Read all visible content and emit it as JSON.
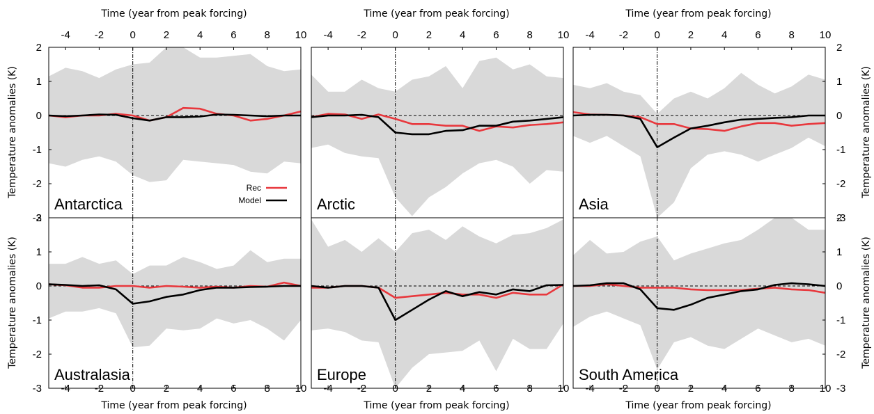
{
  "figure": {
    "xlabel": "Time (year from peak forcing)",
    "ylabel": "Temperature anomalies (K)",
    "x_ticks": [
      -4,
      -2,
      0,
      2,
      4,
      6,
      8,
      10
    ],
    "y_ticks": [
      -3,
      -2,
      -1,
      0,
      1,
      2
    ],
    "xlim": [
      -5,
      10
    ],
    "ylim": [
      -3,
      2
    ],
    "colors": {
      "rec": "#e8383d",
      "model": "#000000",
      "spread": "#d9d9d9"
    }
  },
  "legend": {
    "rec": "Rec",
    "model": "Model",
    "placement": "inside-bottom-right of first panel"
  },
  "chart_data": [
    {
      "type": "line",
      "region": "Antarctica",
      "x": [
        -5,
        -4,
        -3,
        -2,
        -1,
        0,
        1,
        2,
        3,
        4,
        5,
        6,
        7,
        8,
        9,
        10
      ],
      "series": [
        {
          "name": "Rec",
          "values": [
            0,
            -0.05,
            0,
            0,
            0.05,
            0,
            -0.15,
            -0.05,
            0.22,
            0.2,
            0.05,
            0,
            -0.15,
            -0.1,
            0,
            0.12
          ]
        },
        {
          "name": "Model",
          "values": [
            0,
            -0.02,
            0,
            0.03,
            0.02,
            -0.08,
            -0.15,
            -0.05,
            -0.05,
            -0.03,
            0.03,
            0.02,
            0,
            -0.02,
            0,
            0
          ]
        }
      ],
      "spread_upper": [
        1.15,
        1.4,
        1.3,
        1.1,
        1.35,
        1.5,
        1.55,
        2.0,
        2.0,
        1.7,
        1.7,
        1.75,
        1.8,
        1.45,
        1.3,
        1.35
      ],
      "spread_lower": [
        -1.4,
        -1.5,
        -1.3,
        -1.2,
        -1.35,
        -1.75,
        -1.95,
        -1.9,
        -1.3,
        -1.35,
        -1.4,
        -1.45,
        -1.65,
        -1.7,
        -1.35,
        -1.4
      ]
    },
    {
      "type": "line",
      "region": "Arctic",
      "x": [
        -5,
        -4,
        -3,
        -2,
        -1,
        0,
        1,
        2,
        3,
        4,
        5,
        6,
        7,
        8,
        9,
        10
      ],
      "series": [
        {
          "name": "Rec",
          "values": [
            -0.05,
            0.05,
            0.03,
            -0.1,
            0.03,
            -0.1,
            -0.25,
            -0.25,
            -0.3,
            -0.3,
            -0.45,
            -0.32,
            -0.35,
            -0.28,
            -0.25,
            -0.2
          ]
        },
        {
          "name": "Model",
          "values": [
            -0.05,
            0,
            0,
            0.02,
            -0.05,
            -0.5,
            -0.55,
            -0.55,
            -0.45,
            -0.43,
            -0.3,
            -0.3,
            -0.18,
            -0.15,
            -0.1,
            -0.05
          ]
        }
      ],
      "spread_upper": [
        1.2,
        0.7,
        0.7,
        1.05,
        0.8,
        0.7,
        1.05,
        1.15,
        1.45,
        0.8,
        1.6,
        1.7,
        1.35,
        1.5,
        1.15,
        1.1
      ],
      "spread_lower": [
        -0.95,
        -0.85,
        -1.1,
        -1.2,
        -1.25,
        -2.4,
        -2.95,
        -2.4,
        -2.1,
        -1.7,
        -1.4,
        -1.3,
        -1.5,
        -2.0,
        -1.6,
        -1.65
      ]
    },
    {
      "type": "line",
      "region": "Asia",
      "x": [
        -5,
        -4,
        -3,
        -2,
        -1,
        0,
        1,
        2,
        3,
        4,
        5,
        6,
        7,
        8,
        9,
        10
      ],
      "series": [
        {
          "name": "Rec",
          "values": [
            0.1,
            0.03,
            0.02,
            0,
            -0.05,
            -0.25,
            -0.25,
            -0.38,
            -0.4,
            -0.45,
            -0.32,
            -0.22,
            -0.22,
            -0.3,
            -0.25,
            -0.22
          ]
        },
        {
          "name": "Model",
          "values": [
            0,
            0.02,
            0.02,
            0,
            -0.1,
            -0.93,
            -0.65,
            -0.38,
            -0.3,
            -0.2,
            -0.12,
            -0.1,
            -0.07,
            -0.05,
            0,
            0
          ]
        }
      ],
      "spread_upper": [
        0.9,
        0.8,
        0.95,
        0.7,
        0.6,
        0.05,
        0.5,
        0.7,
        0.5,
        0.8,
        1.25,
        0.9,
        0.65,
        0.85,
        1.2,
        1.05
      ],
      "spread_lower": [
        -0.6,
        -0.8,
        -0.6,
        -0.9,
        -1.2,
        -3.0,
        -2.55,
        -1.55,
        -1.15,
        -1.05,
        -1.15,
        -1.35,
        -1.15,
        -0.95,
        -0.65,
        -0.9
      ]
    },
    {
      "type": "line",
      "region": "Australasia",
      "x": [
        -5,
        -4,
        -3,
        -2,
        -1,
        0,
        1,
        2,
        3,
        4,
        5,
        6,
        7,
        8,
        9,
        10
      ],
      "series": [
        {
          "name": "Rec",
          "values": [
            0.05,
            0.02,
            -0.05,
            -0.05,
            0,
            0,
            -0.05,
            0,
            -0.02,
            -0.05,
            -0.02,
            -0.05,
            0,
            -0.02,
            0.1,
            0
          ]
        },
        {
          "name": "Model",
          "values": [
            0.05,
            0.03,
            0,
            0.02,
            -0.1,
            -0.52,
            -0.45,
            -0.32,
            -0.25,
            -0.12,
            -0.05,
            -0.05,
            -0.03,
            -0.02,
            0,
            0
          ]
        }
      ],
      "spread_upper": [
        0.65,
        0.65,
        0.85,
        0.65,
        0.75,
        0.35,
        0.6,
        0.6,
        0.85,
        0.7,
        0.5,
        0.6,
        1.05,
        0.7,
        0.8,
        0.8
      ],
      "spread_lower": [
        -0.95,
        -0.75,
        -0.75,
        -0.65,
        -0.8,
        -1.8,
        -1.75,
        -1.25,
        -1.3,
        -1.25,
        -0.95,
        -1.1,
        -1.0,
        -1.25,
        -1.6,
        -1.0
      ]
    },
    {
      "type": "line",
      "region": "Europe",
      "x": [
        -5,
        -4,
        -3,
        -2,
        -1,
        0,
        1,
        2,
        3,
        4,
        5,
        6,
        7,
        8,
        9,
        10
      ],
      "series": [
        {
          "name": "Rec",
          "values": [
            -0.05,
            -0.05,
            0,
            0,
            -0.05,
            -0.35,
            -0.3,
            -0.25,
            -0.2,
            -0.25,
            -0.25,
            -0.35,
            -0.2,
            -0.25,
            -0.25,
            0.05
          ]
        },
        {
          "name": "Model",
          "values": [
            0,
            -0.05,
            0,
            0,
            -0.05,
            -1.0,
            -0.7,
            -0.4,
            -0.15,
            -0.3,
            -0.18,
            -0.25,
            -0.1,
            -0.15,
            0.02,
            0.03
          ]
        }
      ],
      "spread_upper": [
        1.95,
        1.15,
        1.35,
        1.0,
        1.4,
        1.0,
        1.55,
        1.65,
        1.35,
        1.75,
        1.45,
        1.25,
        1.5,
        1.55,
        1.7,
        1.95
      ],
      "spread_lower": [
        -1.3,
        -1.25,
        -1.35,
        -1.6,
        -1.65,
        -3.0,
        -2.4,
        -2.0,
        -1.95,
        -1.9,
        -1.6,
        -2.5,
        -1.55,
        -1.85,
        -1.85,
        -1.1
      ]
    },
    {
      "type": "line",
      "region": "South America",
      "x": [
        -5,
        -4,
        -3,
        -2,
        -1,
        0,
        1,
        2,
        3,
        4,
        5,
        6,
        7,
        8,
        9,
        10
      ],
      "series": [
        {
          "name": "Rec",
          "values": [
            0,
            0,
            0.05,
            0,
            -0.05,
            -0.05,
            -0.05,
            -0.1,
            -0.12,
            -0.12,
            -0.12,
            -0.08,
            -0.05,
            -0.1,
            -0.12,
            -0.2
          ]
        },
        {
          "name": "Model",
          "values": [
            0,
            0.02,
            0.08,
            0.08,
            -0.1,
            -0.65,
            -0.7,
            -0.55,
            -0.35,
            -0.25,
            -0.15,
            -0.1,
            0.03,
            0.08,
            0.05,
            0
          ]
        }
      ],
      "spread_upper": [
        0.9,
        1.35,
        0.95,
        1.0,
        1.3,
        1.45,
        0.75,
        0.95,
        1.1,
        1.25,
        1.35,
        1.65,
        2.0,
        2.0,
        1.65,
        1.65
      ],
      "spread_lower": [
        -1.2,
        -0.9,
        -0.75,
        -0.95,
        -1.15,
        -2.45,
        -1.65,
        -1.5,
        -1.75,
        -1.85,
        -1.55,
        -1.25,
        -1.45,
        -1.65,
        -1.55,
        -1.75
      ]
    }
  ]
}
